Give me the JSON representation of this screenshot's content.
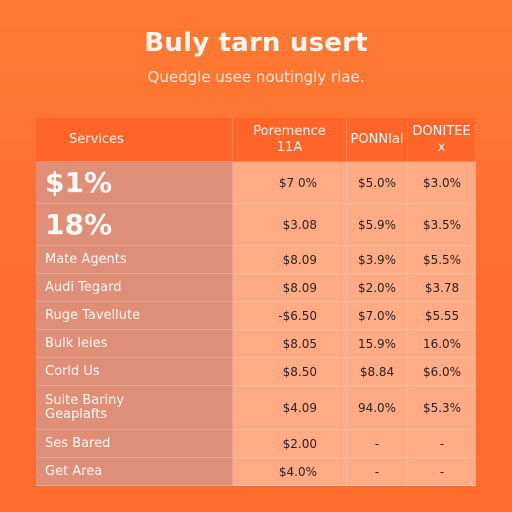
{
  "header": {
    "title": "Buly tarn usert",
    "subtitle": "Quedgle usee noutingly riae."
  },
  "table": {
    "columns": [
      {
        "line1": "Services",
        "line2": ""
      },
      {
        "line1": "Poremence",
        "line2": "11A"
      },
      {
        "line1": "PONNIal",
        "line2": ""
      },
      {
        "line1": "DONITEE",
        "line2": "x"
      }
    ],
    "rows": [
      {
        "label": "$1%",
        "v1": "$7 0%",
        "v2": "$5.0%",
        "v3": "$3.0%"
      },
      {
        "label": "18%",
        "v1": "$3.08",
        "v2": "$5.9%",
        "v3": "$3.5%"
      },
      {
        "label": "Mate Agents",
        "v1": "$8.09",
        "v2": "$3.9%",
        "v3": "$5.5%"
      },
      {
        "label": "Audi Tegard",
        "v1": "$8.09",
        "v2": "$2.0%",
        "v3": "$3.78"
      },
      {
        "label": "Ruge Tavellute",
        "v1": "-$6.50",
        "v2": "$7.0%",
        "v3": "$5.55"
      },
      {
        "label": "Bulk leies",
        "v1": "$8.05",
        "v2": "15.9%",
        "v3": "16.0%"
      },
      {
        "label": "Corld Us",
        "v1": "$8.50",
        "v2": "$8.84",
        "v3": "$6.0%"
      },
      {
        "label": "Suite Bariny\nGeaplafts",
        "v1": "$4.09",
        "v2": "94.0%",
        "v3": "$5.3%"
      },
      {
        "label": "Ses Bared",
        "v1": "$2.00",
        "v2": "-",
        "v3": "-"
      },
      {
        "label": "Get Area",
        "v1": "$4.0%",
        "v2": "-",
        "v3": "-"
      }
    ]
  }
}
